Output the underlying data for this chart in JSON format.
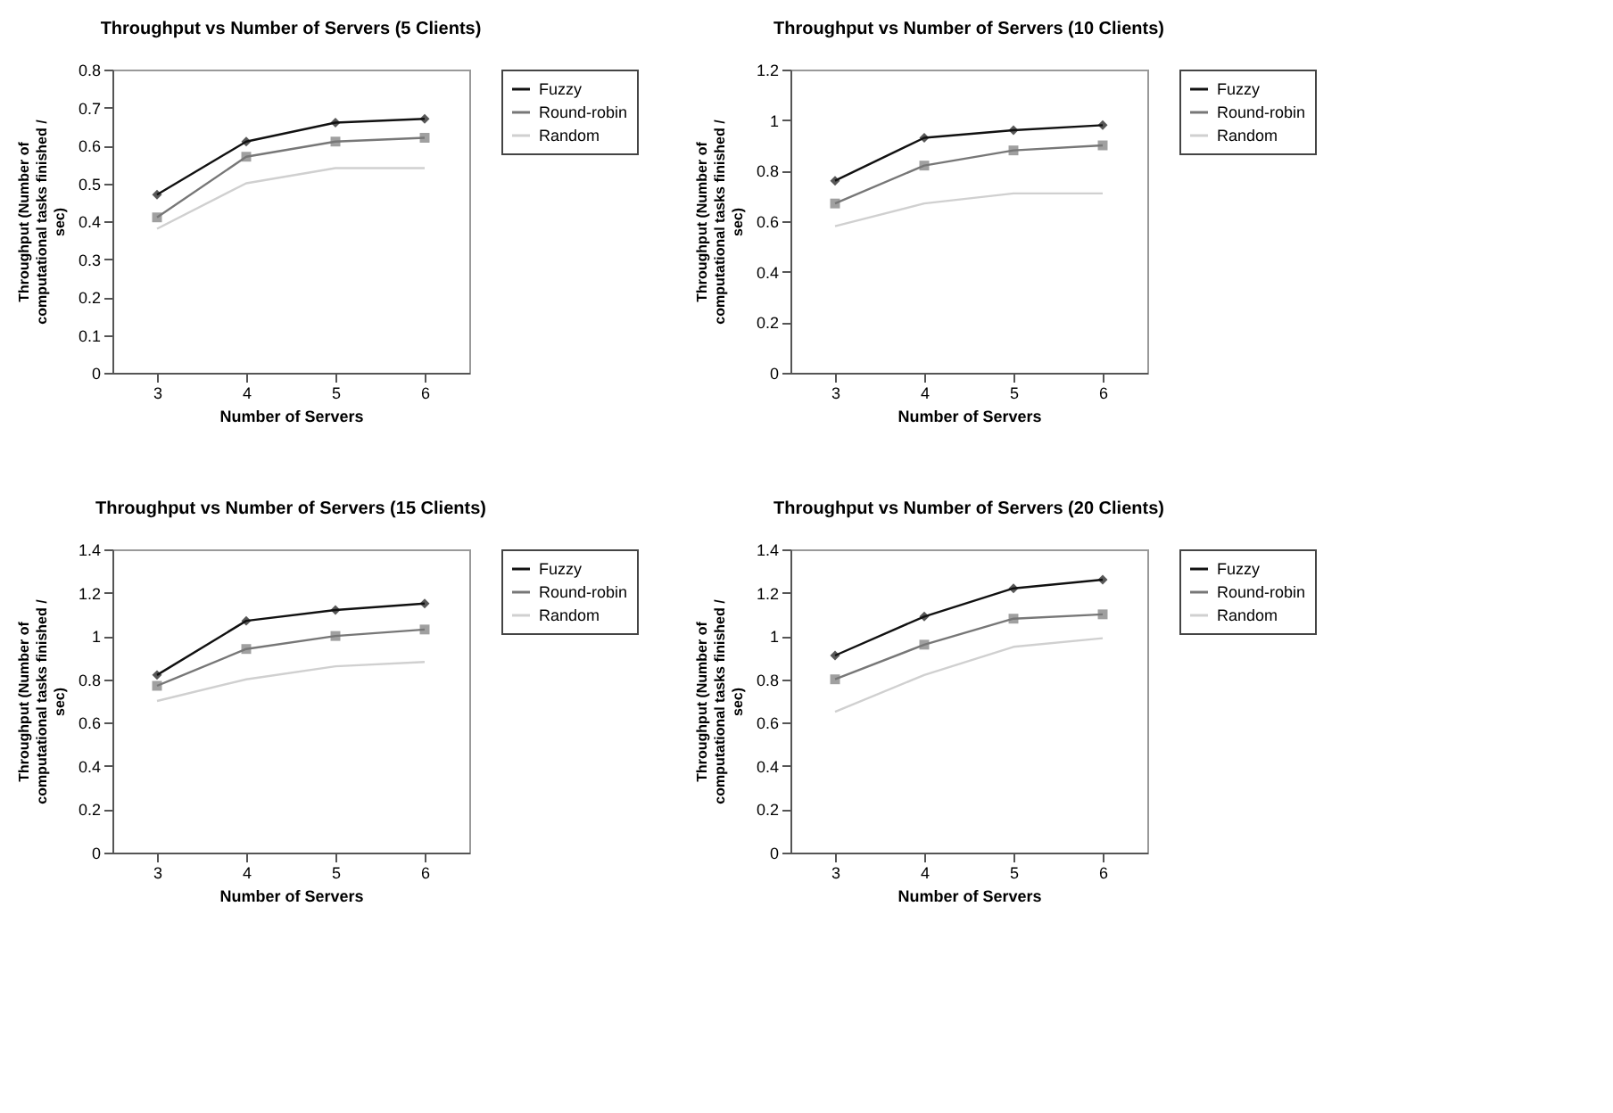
{
  "chart_data": [
    {
      "type": "line",
      "title": "Throughput vs Number of Servers (5 Clients)",
      "xlabel": "Number of Servers",
      "ylabel": "Throughput (Number of computational tasks finished / sec)",
      "categories": [
        "3",
        "4",
        "5",
        "6"
      ],
      "ylim": [
        0,
        0.8
      ],
      "yticks": [
        0,
        0.1,
        0.2,
        0.3,
        0.4,
        0.5,
        0.6,
        0.7,
        0.8
      ],
      "legend": "right",
      "series": [
        {
          "name": "Fuzzy",
          "color": "#111111",
          "marker": "diamond",
          "values": [
            0.47,
            0.61,
            0.66,
            0.67
          ]
        },
        {
          "name": "Round-robin",
          "color": "#777777",
          "marker": "square",
          "values": [
            0.41,
            0.57,
            0.61,
            0.62
          ]
        },
        {
          "name": "Random",
          "color": "#d0d0d0",
          "marker": "none",
          "values": [
            0.38,
            0.5,
            0.54,
            0.54
          ]
        }
      ]
    },
    {
      "type": "line",
      "title": "Throughput vs Number of Servers (10 Clients)",
      "xlabel": "Number of Servers",
      "ylabel": "Throughput (Number of computational tasks finished / sec)",
      "categories": [
        "3",
        "4",
        "5",
        "6"
      ],
      "ylim": [
        0,
        1.2
      ],
      "yticks": [
        0,
        0.2,
        0.4,
        0.6,
        0.8,
        1,
        1.2
      ],
      "legend": "right",
      "series": [
        {
          "name": "Fuzzy",
          "color": "#111111",
          "marker": "diamond",
          "values": [
            0.76,
            0.93,
            0.96,
            0.98
          ]
        },
        {
          "name": "Round-robin",
          "color": "#777777",
          "marker": "square",
          "values": [
            0.67,
            0.82,
            0.88,
            0.9
          ]
        },
        {
          "name": "Random",
          "color": "#d0d0d0",
          "marker": "none",
          "values": [
            0.58,
            0.67,
            0.71,
            0.71
          ]
        }
      ]
    },
    {
      "type": "line",
      "title": "Throughput vs Number of Servers (15 Clients)",
      "xlabel": "Number of Servers",
      "ylabel": "Throughput (Number of computational tasks finished / sec)",
      "categories": [
        "3",
        "4",
        "5",
        "6"
      ],
      "ylim": [
        0,
        1.4
      ],
      "yticks": [
        0,
        0.2,
        0.4,
        0.6,
        0.8,
        1,
        1.2,
        1.4
      ],
      "legend": "right",
      "series": [
        {
          "name": "Fuzzy",
          "color": "#111111",
          "marker": "diamond",
          "values": [
            0.82,
            1.07,
            1.12,
            1.15
          ]
        },
        {
          "name": "Round-robin",
          "color": "#777777",
          "marker": "square",
          "values": [
            0.77,
            0.94,
            1.0,
            1.03
          ]
        },
        {
          "name": "Random",
          "color": "#d0d0d0",
          "marker": "none",
          "values": [
            0.7,
            0.8,
            0.86,
            0.88
          ]
        }
      ]
    },
    {
      "type": "line",
      "title": "Throughput vs Number of Servers (20 Clients)",
      "xlabel": "Number of Servers",
      "ylabel": "Throughput (Number of computational tasks finished / sec)",
      "categories": [
        "3",
        "4",
        "5",
        "6"
      ],
      "ylim": [
        0,
        1.4
      ],
      "yticks": [
        0,
        0.2,
        0.4,
        0.6,
        0.8,
        1,
        1.2,
        1.4
      ],
      "legend": "right",
      "series": [
        {
          "name": "Fuzzy",
          "color": "#111111",
          "marker": "diamond",
          "values": [
            0.91,
            1.09,
            1.22,
            1.26
          ]
        },
        {
          "name": "Round-robin",
          "color": "#777777",
          "marker": "square",
          "values": [
            0.8,
            0.96,
            1.08,
            1.1
          ]
        },
        {
          "name": "Random",
          "color": "#d0d0d0",
          "marker": "none",
          "values": [
            0.65,
            0.82,
            0.95,
            0.99
          ]
        }
      ]
    }
  ]
}
